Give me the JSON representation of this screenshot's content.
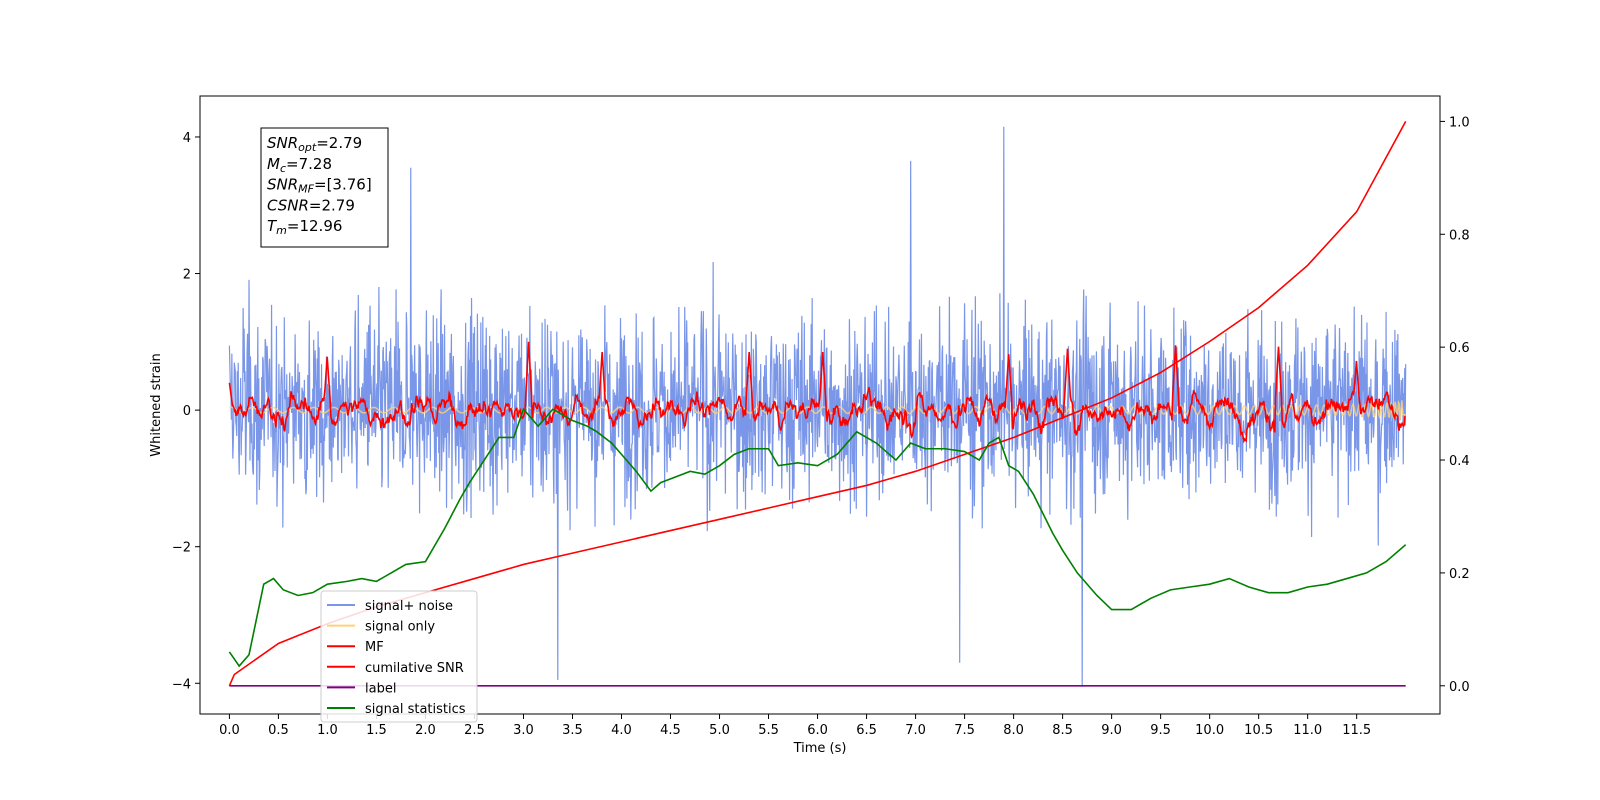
{
  "chart_data": {
    "type": "line",
    "xlabel": "Time (s)",
    "ylabel": "Whitened strain",
    "xlim": [
      -0.3,
      12.35
    ],
    "ylim": [
      -4.45,
      4.6
    ],
    "y2lim": [
      -0.05,
      1.045
    ],
    "x_ticks": [
      0.0,
      0.5,
      1.0,
      1.5,
      2.0,
      2.5,
      3.0,
      3.5,
      4.0,
      4.5,
      5.0,
      5.5,
      6.0,
      6.5,
      7.0,
      7.5,
      8.0,
      8.5,
      9.0,
      9.5,
      10.0,
      10.5,
      11.0,
      11.5
    ],
    "x_tick_labels": [
      "0.0",
      "0.5",
      "1.0",
      "1.5",
      "2.0",
      "2.5",
      "3.0",
      "3.5",
      "4.0",
      "4.5",
      "5.0",
      "5.5",
      "6.0",
      "6.5",
      "7.0",
      "7.5",
      "8.0",
      "8.5",
      "9.0",
      "9.5",
      "10.0",
      "10.5",
      "11.0",
      "11.5"
    ],
    "y_ticks": [
      -4,
      -2,
      0,
      2,
      4
    ],
    "y_tick_labels": [
      "−4",
      "−2",
      "0",
      "2",
      "4"
    ],
    "y2_ticks": [
      0.0,
      0.2,
      0.4,
      0.6,
      0.8,
      1.0
    ],
    "y2_tick_labels": [
      "0.0",
      "0.2",
      "0.4",
      "0.6",
      "0.8",
      "1.0"
    ],
    "legend_position": "lower-left",
    "grid": false,
    "info_box": [
      {
        "var": "SNR",
        "sub": "opt",
        "value": "=2.79"
      },
      {
        "var": "M",
        "sub": "c",
        "value": "=7.28"
      },
      {
        "var": "SNR",
        "sub": "MF",
        "value": "=[3.76]"
      },
      {
        "var": "CSNR",
        "sub": "",
        "value": "=2.79"
      },
      {
        "var": "T",
        "sub": "m",
        "value": "=12.96"
      }
    ],
    "series": [
      {
        "name": "signal+ noise",
        "axis": "left",
        "color": "#7a96e8",
        "kind": "noise",
        "x_range": [
          0.0,
          12.0
        ],
        "envelope": [
          -2.4,
          3.4
        ],
        "spikes": [
          [
            7.9,
            4.15
          ],
          [
            8.7,
            -4.05
          ],
          [
            3.35,
            -3.95
          ],
          [
            6.95,
            3.65
          ],
          [
            1.85,
            3.55
          ],
          [
            7.45,
            -3.7
          ]
        ]
      },
      {
        "name": "signal only",
        "axis": "left",
        "color": "#ffd27a",
        "kind": "chirp",
        "x_range": [
          0.0,
          12.0
        ],
        "amplitude_end": 0.07
      },
      {
        "name": "MF",
        "axis": "left",
        "color": "#ff0000",
        "kind": "mf",
        "x_range": [
          0.0,
          12.0
        ],
        "envelope": [
          -0.45,
          1.0
        ],
        "peaks": [
          [
            0.0,
            0.4
          ],
          [
            1.0,
            0.78
          ],
          [
            3.05,
            1.0
          ],
          [
            3.8,
            0.85
          ],
          [
            5.3,
            0.85
          ],
          [
            6.05,
            0.85
          ],
          [
            7.95,
            0.82
          ],
          [
            8.55,
            0.9
          ],
          [
            9.65,
            0.95
          ],
          [
            10.7,
            0.93
          ],
          [
            11.5,
            0.72
          ]
        ]
      },
      {
        "name": "cumilative SNR",
        "axis": "right",
        "color": "#ff0000",
        "kind": "curve",
        "points": [
          [
            0.0,
            0.0
          ],
          [
            0.05,
            0.02
          ],
          [
            0.5,
            0.075
          ],
          [
            1.0,
            0.11
          ],
          [
            1.5,
            0.14
          ],
          [
            2.0,
            0.165
          ],
          [
            2.5,
            0.19
          ],
          [
            3.0,
            0.215
          ],
          [
            3.5,
            0.235
          ],
          [
            4.0,
            0.255
          ],
          [
            4.5,
            0.275
          ],
          [
            5.0,
            0.295
          ],
          [
            5.5,
            0.315
          ],
          [
            6.0,
            0.335
          ],
          [
            6.5,
            0.355
          ],
          [
            7.0,
            0.38
          ],
          [
            7.5,
            0.41
          ],
          [
            8.0,
            0.44
          ],
          [
            8.5,
            0.475
          ],
          [
            9.0,
            0.51
          ],
          [
            9.5,
            0.555
          ],
          [
            10.0,
            0.61
          ],
          [
            10.5,
            0.67
          ],
          [
            11.0,
            0.745
          ],
          [
            11.5,
            0.84
          ],
          [
            12.0,
            1.0
          ]
        ]
      },
      {
        "name": "label",
        "axis": "right",
        "color": "#800080",
        "kind": "curve",
        "points": [
          [
            0.0,
            0.0
          ],
          [
            12.0,
            0.0
          ]
        ]
      },
      {
        "name": "signal statistics",
        "axis": "right",
        "color": "#008000",
        "kind": "curve",
        "points": [
          [
            0.0,
            0.06
          ],
          [
            0.1,
            0.035
          ],
          [
            0.2,
            0.055
          ],
          [
            0.35,
            0.18
          ],
          [
            0.45,
            0.19
          ],
          [
            0.55,
            0.17
          ],
          [
            0.7,
            0.16
          ],
          [
            0.85,
            0.165
          ],
          [
            1.0,
            0.18
          ],
          [
            1.2,
            0.185
          ],
          [
            1.35,
            0.19
          ],
          [
            1.5,
            0.185
          ],
          [
            1.65,
            0.2
          ],
          [
            1.8,
            0.215
          ],
          [
            2.0,
            0.22
          ],
          [
            2.2,
            0.28
          ],
          [
            2.35,
            0.33
          ],
          [
            2.45,
            0.36
          ],
          [
            2.6,
            0.4
          ],
          [
            2.75,
            0.44
          ],
          [
            2.9,
            0.44
          ],
          [
            3.0,
            0.49
          ],
          [
            3.15,
            0.46
          ],
          [
            3.3,
            0.49
          ],
          [
            3.5,
            0.47
          ],
          [
            3.65,
            0.46
          ],
          [
            3.75,
            0.45
          ],
          [
            3.9,
            0.43
          ],
          [
            4.0,
            0.41
          ],
          [
            4.15,
            0.38
          ],
          [
            4.3,
            0.345
          ],
          [
            4.4,
            0.36
          ],
          [
            4.55,
            0.37
          ],
          [
            4.7,
            0.38
          ],
          [
            4.85,
            0.375
          ],
          [
            5.0,
            0.39
          ],
          [
            5.15,
            0.41
          ],
          [
            5.3,
            0.42
          ],
          [
            5.5,
            0.42
          ],
          [
            5.6,
            0.39
          ],
          [
            5.8,
            0.395
          ],
          [
            6.0,
            0.39
          ],
          [
            6.2,
            0.41
          ],
          [
            6.4,
            0.45
          ],
          [
            6.5,
            0.44
          ],
          [
            6.6,
            0.43
          ],
          [
            6.8,
            0.4
          ],
          [
            6.95,
            0.43
          ],
          [
            7.1,
            0.42
          ],
          [
            7.3,
            0.42
          ],
          [
            7.5,
            0.415
          ],
          [
            7.65,
            0.4
          ],
          [
            7.75,
            0.43
          ],
          [
            7.85,
            0.44
          ],
          [
            7.95,
            0.39
          ],
          [
            8.05,
            0.38
          ],
          [
            8.2,
            0.34
          ],
          [
            8.4,
            0.27
          ],
          [
            8.5,
            0.24
          ],
          [
            8.65,
            0.2
          ],
          [
            8.85,
            0.16
          ],
          [
            9.0,
            0.135
          ],
          [
            9.2,
            0.135
          ],
          [
            9.4,
            0.155
          ],
          [
            9.6,
            0.17
          ],
          [
            9.8,
            0.175
          ],
          [
            10.0,
            0.18
          ],
          [
            10.2,
            0.19
          ],
          [
            10.4,
            0.175
          ],
          [
            10.6,
            0.165
          ],
          [
            10.8,
            0.165
          ],
          [
            11.0,
            0.175
          ],
          [
            11.2,
            0.18
          ],
          [
            11.4,
            0.19
          ],
          [
            11.6,
            0.2
          ],
          [
            11.8,
            0.22
          ],
          [
            12.0,
            0.25
          ]
        ]
      }
    ]
  }
}
